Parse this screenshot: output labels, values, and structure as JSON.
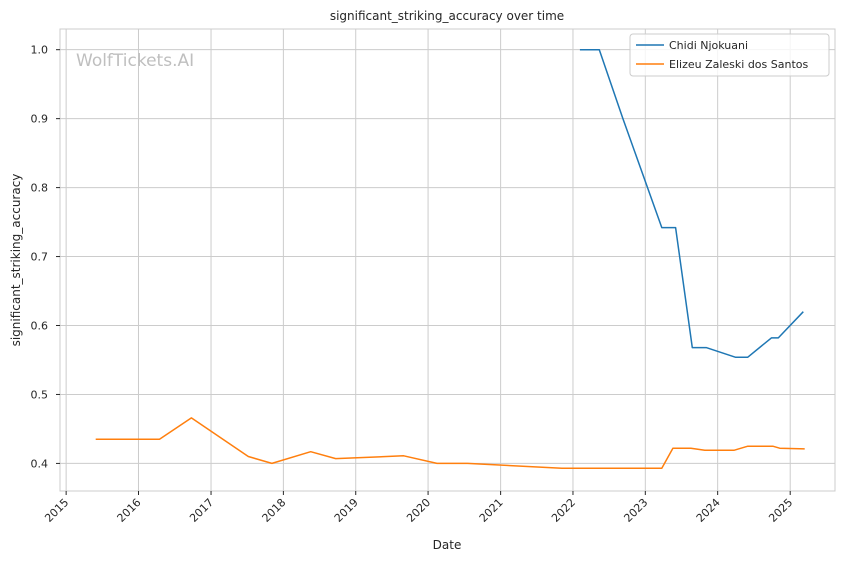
{
  "chart_data": {
    "type": "line",
    "title": "significant_striking_accuracy over time",
    "xlabel": "Date",
    "ylabel": "significant_striking_accuracy",
    "watermark": "WolfTickets.AI",
    "x_type": "date",
    "xlim": [
      "2014-12-01",
      "2025-08-15"
    ],
    "ylim": [
      0.36,
      1.03
    ],
    "x_ticks": [
      "2015",
      "2016",
      "2017",
      "2018",
      "2019",
      "2020",
      "2021",
      "2022",
      "2023",
      "2024",
      "2025"
    ],
    "y_ticks": [
      "0.4",
      "0.5",
      "0.6",
      "0.7",
      "0.8",
      "0.9",
      "1.0"
    ],
    "grid": true,
    "legend_position": "top-right",
    "series": [
      {
        "name": "Chidi Njokuani",
        "color": "#1f77b4",
        "points": [
          [
            "2022-02-05",
            1.0
          ],
          [
            "2022-05-14",
            1.0
          ],
          [
            "2022-09-10",
            0.9
          ],
          [
            "2023-03-25",
            0.742
          ],
          [
            "2023-06-03",
            0.742
          ],
          [
            "2023-08-26",
            0.568
          ],
          [
            "2023-11-04",
            0.568
          ],
          [
            "2024-03-30",
            0.554
          ],
          [
            "2024-06-01",
            0.554
          ],
          [
            "2024-09-28",
            0.582
          ],
          [
            "2024-11-02",
            0.582
          ],
          [
            "2025-03-08",
            0.62
          ]
        ]
      },
      {
        "name": "Elizeu Zaleski dos Santos",
        "color": "#ff7f0e",
        "points": [
          [
            "2015-05-30",
            0.435
          ],
          [
            "2016-04-16",
            0.435
          ],
          [
            "2016-09-24",
            0.466
          ],
          [
            "2017-07-08",
            0.41
          ],
          [
            "2017-11-04",
            0.4
          ],
          [
            "2018-05-19",
            0.417
          ],
          [
            "2018-09-22",
            0.407
          ],
          [
            "2019-08-31",
            0.411
          ],
          [
            "2020-02-15",
            0.4
          ],
          [
            "2020-07-18",
            0.4
          ],
          [
            "2021-11-06",
            0.393
          ],
          [
            "2023-03-25",
            0.393
          ],
          [
            "2023-05-20",
            0.422
          ],
          [
            "2023-08-19",
            0.422
          ],
          [
            "2023-10-28",
            0.419
          ],
          [
            "2024-03-23",
            0.419
          ],
          [
            "2024-06-01",
            0.425
          ],
          [
            "2024-10-05",
            0.425
          ],
          [
            "2024-11-09",
            0.422
          ],
          [
            "2025-03-15",
            0.421
          ]
        ]
      }
    ]
  }
}
